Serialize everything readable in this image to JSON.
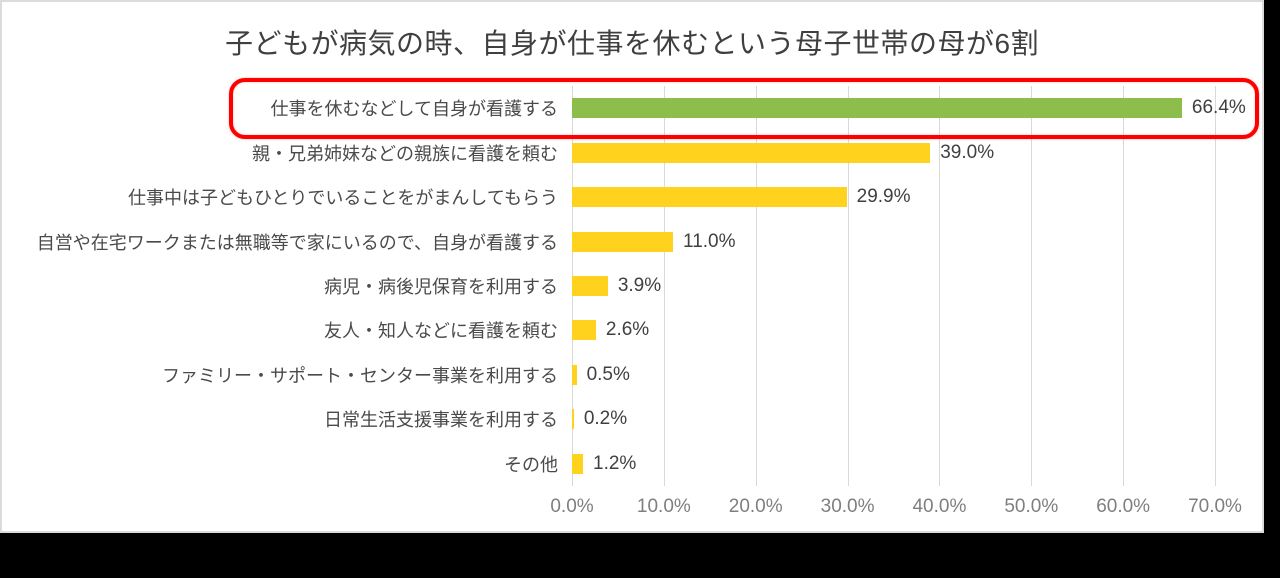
{
  "page": {
    "background_color": "#000000",
    "canvas_background": "#FFFFFF",
    "canvas_border_color": "#DBDBDB"
  },
  "chart_data": {
    "type": "bar",
    "orientation": "horizontal",
    "title": "子どもが病気の時、自身が仕事を休むという母子世帯の母が6割",
    "categories": [
      "仕事を休むなどして自身が看護する",
      "親・兄弟姉妹などの親族に看護を頼む",
      "仕事中は子どもひとりでいることをがまんしてもらう",
      "自営や在宅ワークまたは無職等で家にいるので、自身が看護する",
      "病児・病後児保育を利用する",
      "友人・知人などに看護を頼む",
      "ファミリー・サポート・センター事業を利用する",
      "日常生活支援事業を利用する",
      "その他"
    ],
    "values": [
      66.4,
      39.0,
      29.9,
      11.0,
      3.9,
      2.6,
      0.5,
      0.2,
      1.2
    ],
    "value_labels": [
      "66.4%",
      "39.0%",
      "29.9%",
      "11.0%",
      "3.9%",
      "2.6%",
      "0.5%",
      "0.2%",
      "1.2%"
    ],
    "x_ticks": [
      "0.0%",
      "10.0%",
      "20.0%",
      "30.0%",
      "40.0%",
      "50.0%",
      "60.0%",
      "70.0%"
    ],
    "xlim": [
      0,
      70
    ],
    "grid": true,
    "gridline_color": "#D9D9D9",
    "highlight_index": 0,
    "bar_colors": {
      "highlight": "#8DBE4C",
      "default": "#FFD21E"
    },
    "annotation": {
      "shape": "red-rounded-rect",
      "color": "#FF0000",
      "target_row": 0
    },
    "text_colors": {
      "title": "#3F3F3F",
      "category": "#4A4A4A",
      "value": "#404040",
      "tick": "#7F7F7F"
    }
  }
}
